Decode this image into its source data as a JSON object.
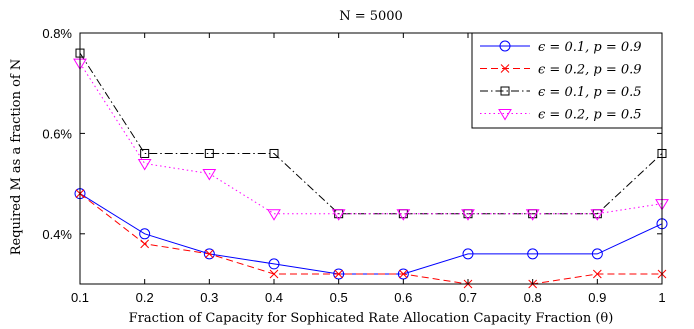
{
  "chart_data": {
    "type": "line",
    "title": "N = 5000",
    "xlabel": "Fraction of Capacity for Sophicated Rate Allocation Capacity Fraction (θ)",
    "ylabel": "Required M as a fraction of N",
    "x": [
      0.1,
      0.2,
      0.3,
      0.4,
      0.5,
      0.6,
      0.7,
      0.8,
      0.9,
      1.0
    ],
    "x_tick_labels": [
      "0.1",
      "0.2",
      "0.3",
      "0.4",
      "0.5",
      "0.6",
      "0.7",
      "0.8",
      "0.9",
      "1"
    ],
    "y_ticks": [
      0.4,
      0.6,
      0.8
    ],
    "y_tick_labels": [
      "0.4%",
      "0.6%",
      "0.8%"
    ],
    "xlim": [
      0.1,
      1.0
    ],
    "ylim": [
      0.3,
      0.8
    ],
    "grid": false,
    "legend_position": "top-right",
    "series": [
      {
        "name": "ϵ = 0.1, p = 0.9",
        "color": "#0000ff",
        "line_style": "solid",
        "marker": "circle",
        "values": [
          0.48,
          0.4,
          0.36,
          0.34,
          0.32,
          0.32,
          0.36,
          0.36,
          0.36,
          0.42
        ]
      },
      {
        "name": "ϵ = 0.2, p = 0.9",
        "color": "#ff0000",
        "line_style": "dashed",
        "marker": "x",
        "values": [
          0.48,
          0.38,
          0.36,
          0.32,
          0.32,
          0.32,
          0.3,
          0.3,
          0.32,
          0.32
        ]
      },
      {
        "name": "ϵ = 0.1, p = 0.5",
        "color": "#000000",
        "line_style": "dash-dot",
        "marker": "square",
        "values": [
          0.76,
          0.56,
          0.56,
          0.56,
          0.44,
          0.44,
          0.44,
          0.44,
          0.44,
          0.56
        ]
      },
      {
        "name": "ϵ = 0.2, p = 0.5",
        "color": "#ff00ff",
        "line_style": "dotted",
        "marker": "triangle-down",
        "values": [
          0.74,
          0.54,
          0.52,
          0.44,
          0.44,
          0.44,
          0.44,
          0.44,
          0.44,
          0.46
        ]
      }
    ]
  }
}
